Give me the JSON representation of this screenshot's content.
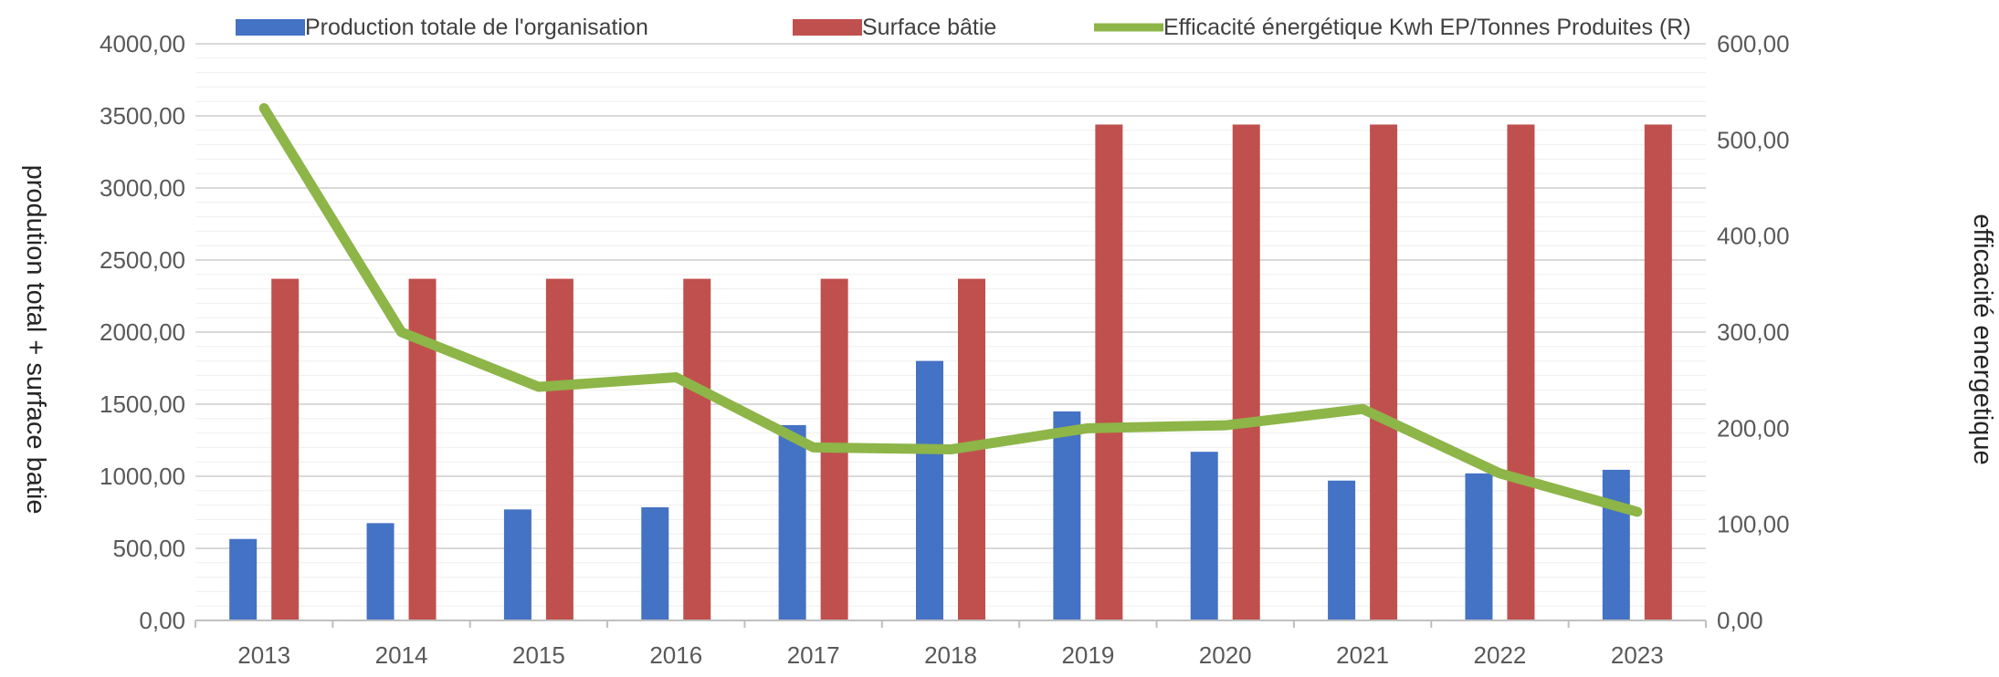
{
  "chart_data": {
    "type": "bar",
    "categories": [
      "2013",
      "2014",
      "2015",
      "2016",
      "2017",
      "2018",
      "2019",
      "2020",
      "2021",
      "2022",
      "2023"
    ],
    "series": [
      {
        "name": "Production totale de l'organisation",
        "type": "bar",
        "axis": "left",
        "color": "#4472C4",
        "values": [
          565,
          675,
          770,
          785,
          1355,
          1800,
          1450,
          1170,
          970,
          1020,
          1045
        ]
      },
      {
        "name": "Surface bâtie",
        "type": "bar",
        "axis": "left",
        "color": "#C0504D",
        "values": [
          2370,
          2370,
          2370,
          2370,
          2370,
          2370,
          3440,
          3440,
          3440,
          3440,
          3440
        ]
      },
      {
        "name": "Efficacité énergétique Kwh EP/Tonnes Produites (R)",
        "type": "line",
        "axis": "right",
        "color": "#8DB548",
        "values": [
          533,
          300,
          243,
          253,
          180,
          178,
          200,
          203,
          220,
          153,
          113
        ]
      }
    ],
    "ylabel_left": "prodution total + surface batie",
    "ylabel_right": "efficacité energetique",
    "ylim_left": [
      0,
      4000
    ],
    "ylim_right": [
      0,
      600
    ],
    "yticks_left": [
      "0,00",
      "500,00",
      "1000,00",
      "1500,00",
      "2000,00",
      "2500,00",
      "3000,00",
      "3500,00",
      "4000,00"
    ],
    "yticks_right": [
      "0,00",
      "100,00",
      "200,00",
      "300,00",
      "400,00",
      "500,00",
      "600,00"
    ],
    "grid": true,
    "legend_position": "top"
  }
}
